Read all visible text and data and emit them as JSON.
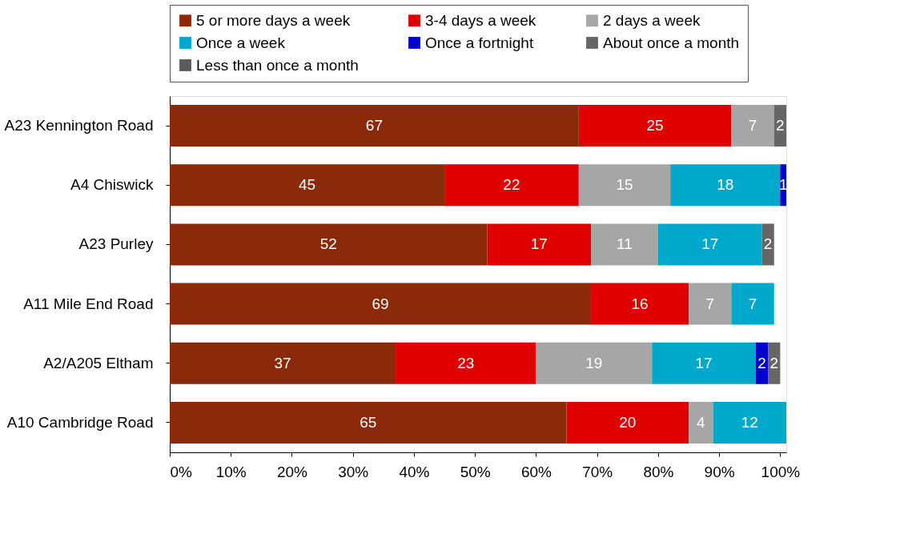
{
  "chart_data": {
    "type": "bar",
    "orientation": "horizontal",
    "stacked": true,
    "categories": [
      "A23 Kennington Road",
      "A4 Chiswick",
      "A23 Purley",
      "A11 Mile End Road",
      "A2/A205 Eltham",
      "A10 Cambridge Road"
    ],
    "series": [
      {
        "name": "5 or more days a week",
        "color": "#8b2a0a",
        "values": [
          67,
          45,
          52,
          69,
          37,
          65
        ]
      },
      {
        "name": "3-4 days a week",
        "color": "#e00000",
        "values": [
          25,
          22,
          17,
          16,
          23,
          20
        ]
      },
      {
        "name": "2 days a week",
        "color": "#a6a6a6",
        "values": [
          7,
          15,
          11,
          7,
          19,
          4
        ]
      },
      {
        "name": "Once a week",
        "color": "#00a8cc",
        "values": [
          null,
          18,
          17,
          7,
          17,
          12
        ]
      },
      {
        "name": "Once a fortnight",
        "color": "#0000cc",
        "values": [
          null,
          1,
          null,
          null,
          2,
          null
        ]
      },
      {
        "name": "About once a month",
        "color": "#666666",
        "values": [
          2,
          null,
          2,
          null,
          2,
          null
        ]
      },
      {
        "name": "Less than once a month",
        "color": "#5a5a5a",
        "values": [
          null,
          null,
          null,
          null,
          null,
          null
        ]
      }
    ],
    "xlim": [
      0,
      101
    ],
    "xticks": [
      {
        "value": 0,
        "label": "0%"
      },
      {
        "value": 10,
        "label": "10%"
      },
      {
        "value": 20,
        "label": "20%"
      },
      {
        "value": 30,
        "label": "30%"
      },
      {
        "value": 40,
        "label": "40%"
      },
      {
        "value": 50,
        "label": "50%"
      },
      {
        "value": 60,
        "label": "60%"
      },
      {
        "value": 70,
        "label": "70%"
      },
      {
        "value": 80,
        "label": "80%"
      },
      {
        "value": 90,
        "label": "90%"
      },
      {
        "value": 100,
        "label": "100%"
      }
    ],
    "data_labels": true,
    "grid": false,
    "legend": "top"
  }
}
